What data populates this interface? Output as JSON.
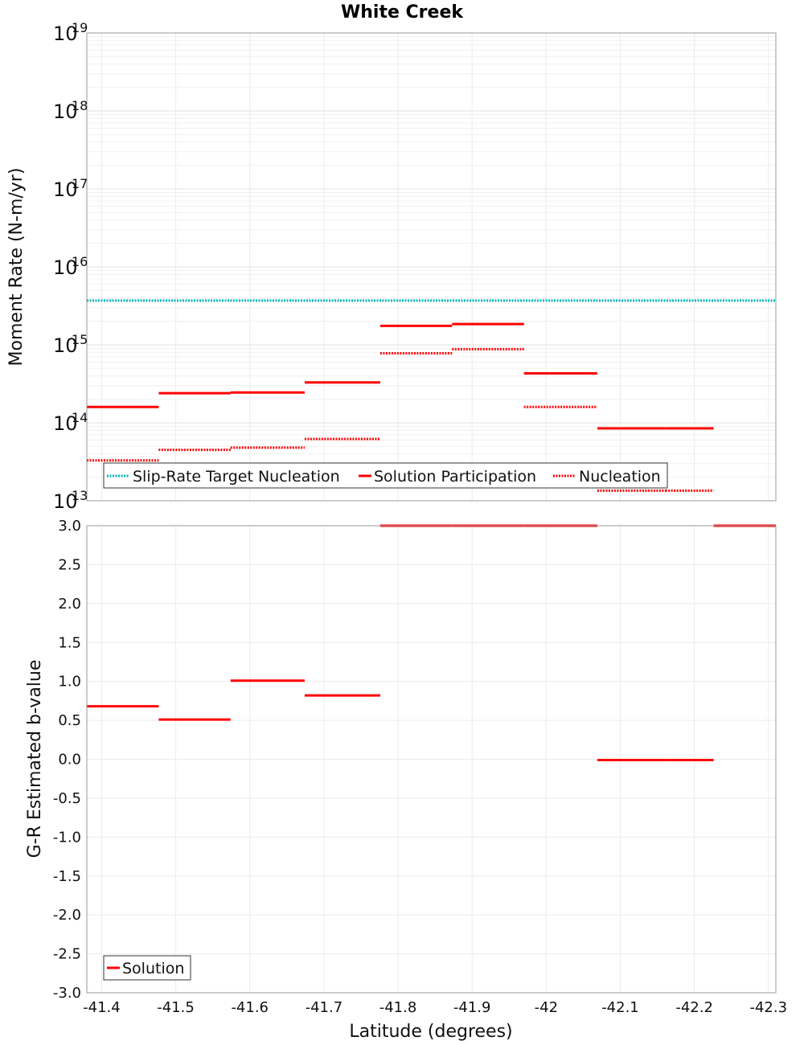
{
  "chart_data": [
    {
      "type": "line",
      "title": "White Creek",
      "xlabel": "",
      "ylabel": "Moment Rate (N-m/yr)",
      "y_scale": "log",
      "ylim": [
        10000000000000.0,
        1e+19
      ],
      "xlim": [
        -41.38,
        -42.31
      ],
      "y_ticks": [
        {
          "base": "10",
          "exp": "13"
        },
        {
          "base": "10",
          "exp": "14"
        },
        {
          "base": "10",
          "exp": "15"
        },
        {
          "base": "10",
          "exp": "16"
        },
        {
          "base": "10",
          "exp": "17"
        },
        {
          "base": "10",
          "exp": "18"
        },
        {
          "base": "10",
          "exp": "19"
        }
      ],
      "grid": true,
      "legend_position": "bottom-left",
      "legend": [
        "Slip-Rate Target Nucleation",
        "Solution Participation",
        "Nucleation"
      ],
      "series": [
        {
          "name": "Slip-Rate Target Nucleation",
          "color": "#00b5b5",
          "style": "dotted",
          "segments": [
            [
              -41.38,
              -42.31,
              3700000000000000.0
            ]
          ]
        },
        {
          "name": "Solution Participation",
          "color": "#ff0000",
          "style": "solid",
          "segments": [
            [
              -41.38,
              -41.477,
              160000000000000.0
            ],
            [
              -41.477,
              -41.574,
              240000000000000.0
            ],
            [
              -41.574,
              -41.674,
              245000000000000.0
            ],
            [
              -41.674,
              -41.776,
              330000000000000.0
            ],
            [
              -41.776,
              -41.873,
              1750000000000000.0
            ],
            [
              -41.873,
              -41.97,
              1850000000000000.0
            ],
            [
              -41.97,
              -42.069,
              430000000000000.0
            ],
            [
              -42.069,
              -42.161,
              85000000000000.0
            ],
            [
              -42.161,
              -42.226,
              85000000000000.0
            ]
          ]
        },
        {
          "name": "Nucleation",
          "color": "#ff0000",
          "style": "dotted",
          "segments": [
            [
              -41.38,
              -41.477,
              33000000000000.0
            ],
            [
              -41.477,
              -41.574,
              45000000000000.0
            ],
            [
              -41.574,
              -41.674,
              48000000000000.0
            ],
            [
              -41.674,
              -41.776,
              62000000000000.0
            ],
            [
              -41.776,
              -41.873,
              780000000000000.0
            ],
            [
              -41.873,
              -41.97,
              880000000000000.0
            ],
            [
              -41.97,
              -42.069,
              160000000000000.0
            ],
            [
              -42.069,
              -42.161,
              13500000000000.0
            ],
            [
              -42.161,
              -42.226,
              13500000000000.0
            ]
          ]
        }
      ]
    },
    {
      "type": "line",
      "xlabel": "Latitude (degrees)",
      "ylabel": "G-R Estimated b-value",
      "ylim": [
        -3.0,
        3.0
      ],
      "xlim": [
        -41.38,
        -42.31
      ],
      "y_ticks": [
        "3.0",
        "2.5",
        "2.0",
        "1.5",
        "1.0",
        "0.5",
        "0.0",
        "-0.5",
        "-1.0",
        "-1.5",
        "-2.0",
        "-2.5",
        "-3.0"
      ],
      "x_ticks": [
        {
          "value": -41.4,
          "label": "-41.4"
        },
        {
          "value": -41.5,
          "label": "-41.5"
        },
        {
          "value": -41.6,
          "label": "-41.6"
        },
        {
          "value": -41.7,
          "label": "-41.7"
        },
        {
          "value": -41.8,
          "label": "-41.8"
        },
        {
          "value": -41.9,
          "label": "-41.9"
        },
        {
          "value": -42.0,
          "label": "-42"
        },
        {
          "value": -42.1,
          "label": "-42.1"
        },
        {
          "value": -42.2,
          "label": "-42.2"
        },
        {
          "value": -42.3,
          "label": "-42.3"
        }
      ],
      "grid": true,
      "legend_position": "bottom-left",
      "legend": [
        "Solution"
      ],
      "series": [
        {
          "name": "Solution",
          "color": "#ff0000",
          "style": "solid",
          "segments": [
            [
              -41.38,
              -41.477,
              0.68
            ],
            [
              -41.477,
              -41.574,
              0.51
            ],
            [
              -41.574,
              -41.674,
              1.01
            ],
            [
              -41.674,
              -41.776,
              0.82
            ],
            [
              -41.776,
              -41.873,
              3.0
            ],
            [
              -41.873,
              -41.97,
              3.0
            ],
            [
              -41.97,
              -42.069,
              3.0
            ],
            [
              -42.069,
              -42.161,
              -0.01
            ],
            [
              -42.161,
              -42.226,
              -0.01
            ],
            [
              -42.226,
              -42.31,
              3.0
            ]
          ]
        }
      ]
    }
  ]
}
